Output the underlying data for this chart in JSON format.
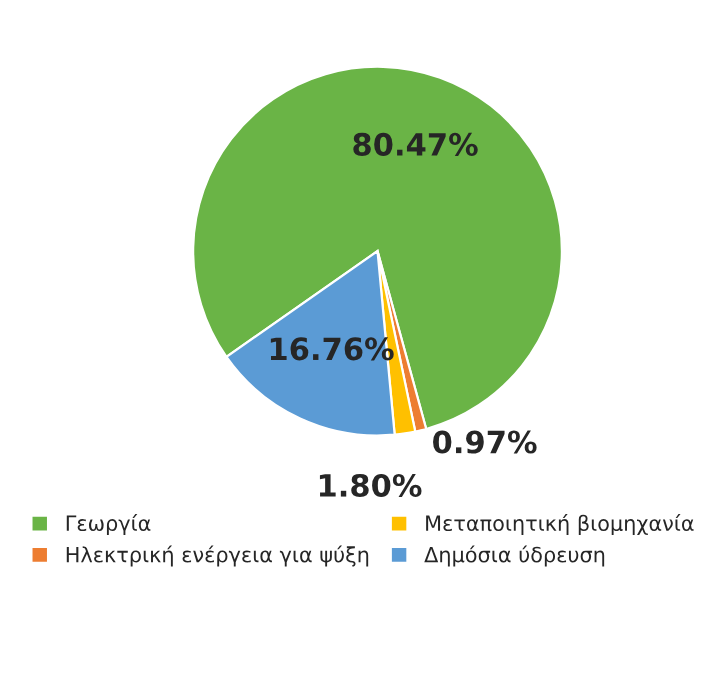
{
  "chart_data": {
    "type": "pie",
    "categories": [
      "Γεωργία",
      "Ηλεκτρική ενέργεια για ψύξη",
      "Μεταποιητική βιομηχανία",
      "Δημόσια ύδρευση"
    ],
    "values": [
      80.47,
      0.97,
      1.8,
      16.76
    ],
    "colors": [
      "#6ab446",
      "#ed7d31",
      "#ffc000",
      "#5b9bd5"
    ],
    "value_labels": [
      "80.47%",
      "0.97%",
      "1.80%",
      "16.76%"
    ],
    "legend": "bottom"
  }
}
